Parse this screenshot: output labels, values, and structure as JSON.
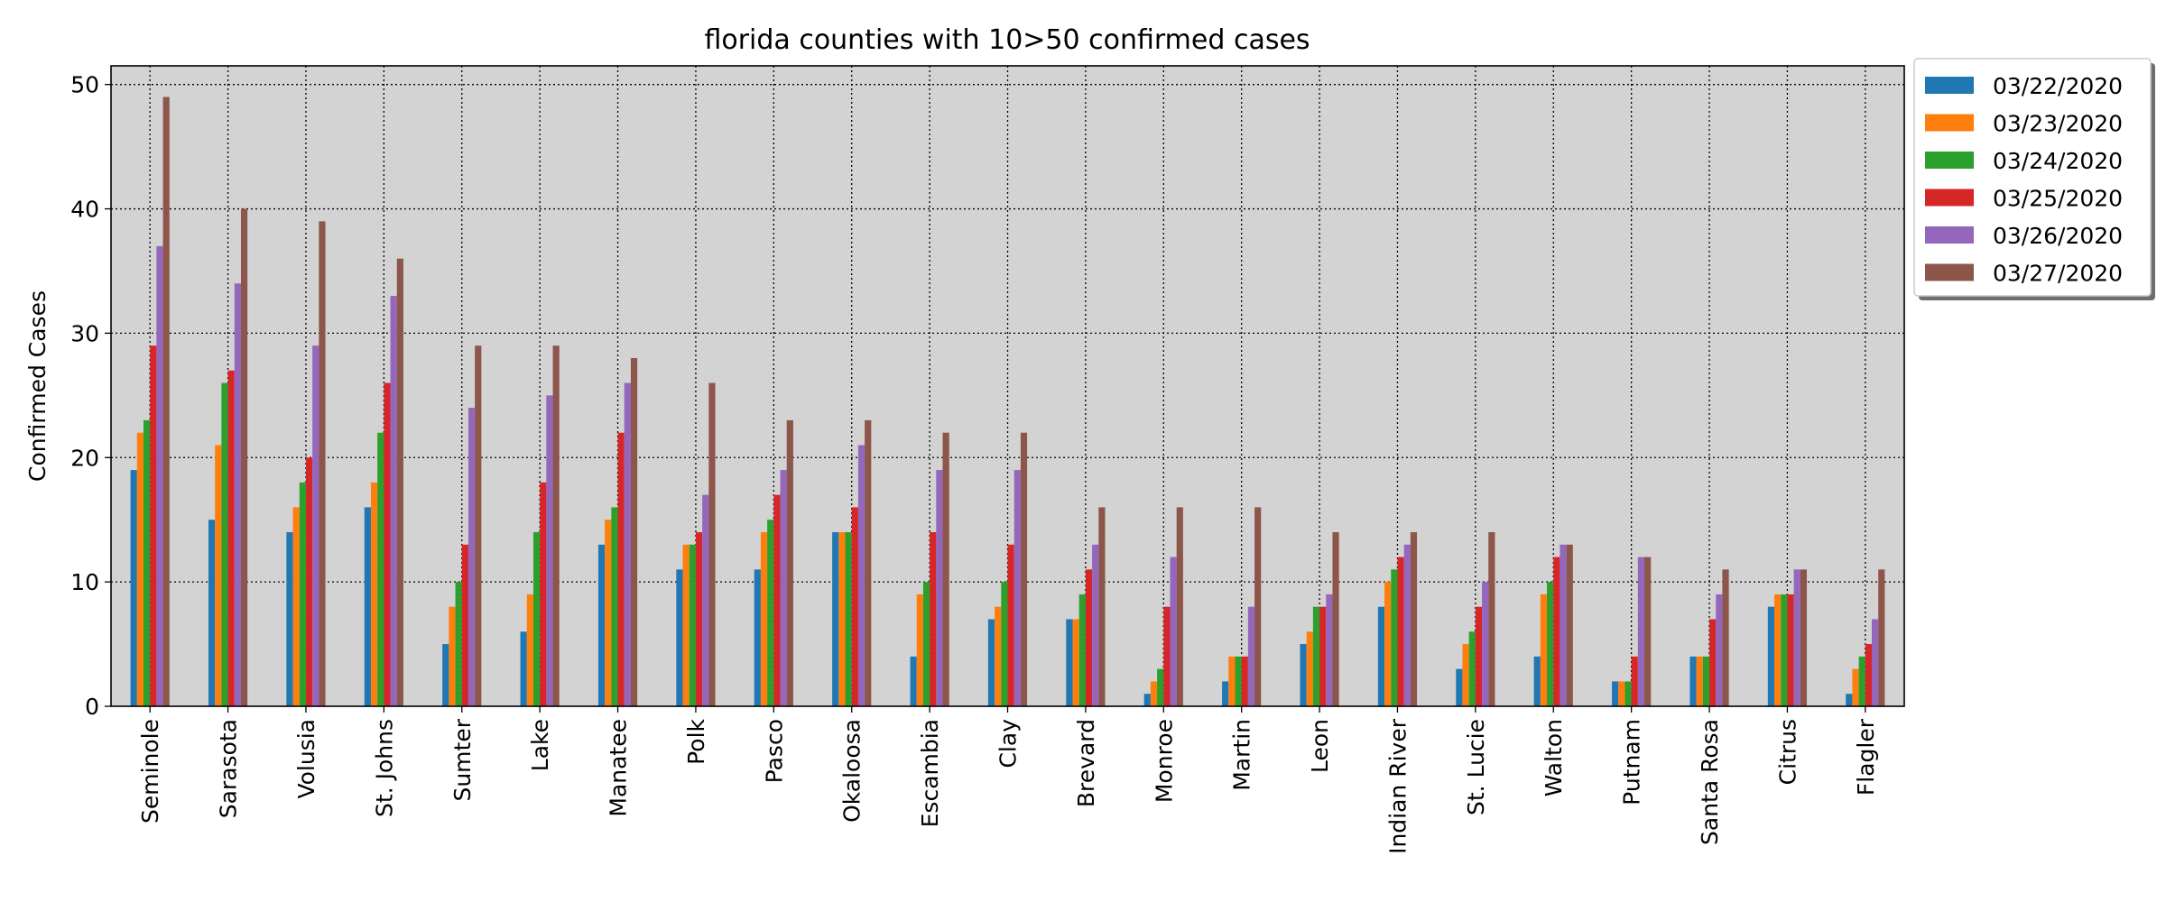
{
  "chart_data": {
    "type": "bar",
    "title": "florida counties with 10>50 confirmed cases",
    "xlabel": "",
    "ylabel": "Confirmed Cases",
    "ylim": [
      0,
      51.5
    ],
    "yticks": [
      0,
      10,
      20,
      30,
      40,
      50
    ],
    "grid": true,
    "legend_position": "outside-top-right",
    "categories": [
      "Seminole",
      "Sarasota",
      "Volusia",
      "St. Johns",
      "Sumter",
      "Lake",
      "Manatee",
      "Polk",
      "Pasco",
      "Okaloosa",
      "Escambia",
      "Clay",
      "Brevard",
      "Monroe",
      "Martin",
      "Leon",
      "Indian River",
      "St. Lucie",
      "Walton",
      "Putnam",
      "Santa Rosa",
      "Citrus",
      "Flagler"
    ],
    "series": [
      {
        "name": "03/22/2020",
        "color": "#1f77b4",
        "values": [
          19,
          15,
          14,
          16,
          5,
          6,
          13,
          11,
          11,
          14,
          4,
          7,
          7,
          1,
          2,
          5,
          8,
          3,
          4,
          2,
          4,
          8,
          1
        ]
      },
      {
        "name": "03/23/2020",
        "color": "#ff7f0e",
        "values": [
          22,
          21,
          16,
          18,
          8,
          9,
          15,
          13,
          14,
          14,
          9,
          8,
          7,
          2,
          4,
          6,
          10,
          5,
          9,
          2,
          4,
          9,
          3
        ]
      },
      {
        "name": "03/24/2020",
        "color": "#2ca02c",
        "values": [
          23,
          26,
          18,
          22,
          10,
          14,
          16,
          13,
          15,
          14,
          10,
          10,
          9,
          3,
          4,
          8,
          11,
          6,
          10,
          2,
          4,
          9,
          4
        ]
      },
      {
        "name": "03/25/2020",
        "color": "#d62728",
        "values": [
          29,
          27,
          20,
          26,
          13,
          18,
          22,
          14,
          17,
          16,
          14,
          13,
          11,
          8,
          4,
          8,
          12,
          8,
          12,
          4,
          7,
          9,
          5
        ]
      },
      {
        "name": "03/26/2020",
        "color": "#9467bd",
        "values": [
          37,
          34,
          29,
          33,
          24,
          25,
          26,
          17,
          19,
          21,
          19,
          19,
          13,
          12,
          8,
          9,
          13,
          10,
          13,
          12,
          9,
          11,
          7
        ]
      },
      {
        "name": "03/27/2020",
        "color": "#8c564b",
        "values": [
          49,
          40,
          39,
          36,
          29,
          29,
          28,
          26,
          23,
          23,
          22,
          22,
          16,
          16,
          16,
          14,
          14,
          14,
          13,
          12,
          11,
          11,
          11
        ]
      }
    ]
  }
}
